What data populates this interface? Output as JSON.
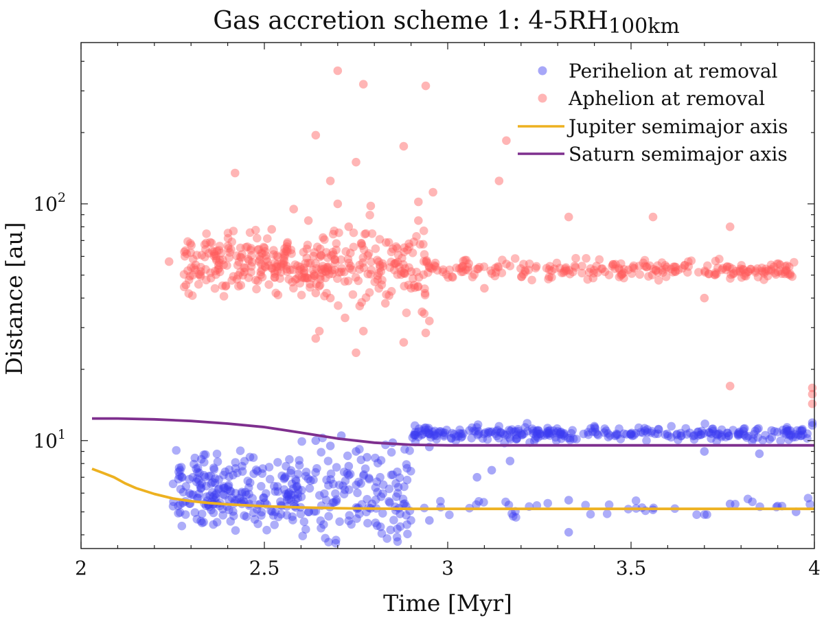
{
  "chart_data": {
    "type": "scatter",
    "title": "Gas accretion scheme 1: 4-5RH_100km",
    "title_main": "Gas accretion scheme 1: 4-5RH",
    "title_sub": "100km",
    "xlabel": "Time [Myr]",
    "ylabel": "Distance [au]",
    "xlim": [
      2,
      4
    ],
    "ylim": [
      3.5,
      480
    ],
    "yscale": "log",
    "x_ticks": [
      {
        "value": 2,
        "label": "2"
      },
      {
        "value": 2.5,
        "label": "2.5"
      },
      {
        "value": 3,
        "label": "3"
      },
      {
        "value": 3.5,
        "label": "3.5"
      },
      {
        "value": 4,
        "label": "4"
      }
    ],
    "y_ticks": [
      {
        "value": 10,
        "base": "10",
        "exp": "1"
      },
      {
        "value": 100,
        "base": "10",
        "exp": "2"
      }
    ],
    "legend_position": "top-right",
    "series": [
      {
        "name": "Perihelion at removal",
        "kind": "scatter",
        "color": "#3b3bf0",
        "clusters": [
          {
            "x": [
              2.25,
              2.6
            ],
            "y_center": 6.1,
            "y_spread": 0.07,
            "count": 230
          },
          {
            "x": [
              2.6,
              2.9
            ],
            "y_center": 6.0,
            "y_spread": 0.12,
            "count": 140
          },
          {
            "x": [
              2.9,
              4.0
            ],
            "y_center": 10.7,
            "y_spread": 0.015,
            "count": 300
          },
          {
            "x": [
              2.9,
              4.0
            ],
            "y_center": 5.3,
            "y_spread": 0.02,
            "count": 40
          }
        ],
        "points": [
          {
            "x": 2.64,
            "y": 10.0
          },
          {
            "x": 2.68,
            "y": 9.5
          },
          {
            "x": 2.71,
            "y": 10.5
          },
          {
            "x": 2.75,
            "y": 9.0
          },
          {
            "x": 2.78,
            "y": 8.5
          },
          {
            "x": 2.73,
            "y": 7.8
          },
          {
            "x": 2.85,
            "y": 9.8
          },
          {
            "x": 2.95,
            "y": 9.4
          },
          {
            "x": 3.08,
            "y": 7.0
          },
          {
            "x": 3.12,
            "y": 7.5
          },
          {
            "x": 3.17,
            "y": 8.2
          },
          {
            "x": 3.33,
            "y": 5.6
          },
          {
            "x": 3.33,
            "y": 4.1
          },
          {
            "x": 3.56,
            "y": 5.1
          },
          {
            "x": 3.7,
            "y": 9.0
          },
          {
            "x": 3.77,
            "y": 5.4
          },
          {
            "x": 3.85,
            "y": 8.8
          },
          {
            "x": 2.95,
            "y": 4.6
          },
          {
            "x": 2.87,
            "y": 4.9
          },
          {
            "x": 2.62,
            "y": 5.0
          },
          {
            "x": 4.0,
            "y": 11.6
          },
          {
            "x": 4.0,
            "y": 11.9
          },
          {
            "x": 3.95,
            "y": 5.0
          }
        ]
      },
      {
        "name": "Aphelion at removal",
        "kind": "scatter",
        "color": "#ff5a5a",
        "clusters": [
          {
            "x": [
              2.28,
              2.7
            ],
            "y_center": 56,
            "y_spread": 0.06,
            "count": 260
          },
          {
            "x": [
              2.7,
              2.95
            ],
            "y_center": 55,
            "y_spread": 0.08,
            "count": 120
          },
          {
            "x": [
              2.95,
              3.95
            ],
            "y_center": 52.5,
            "y_spread": 0.02,
            "count": 230
          }
        ],
        "points": [
          {
            "x": 2.24,
            "y": 57
          },
          {
            "x": 2.42,
            "y": 135
          },
          {
            "x": 2.64,
            "y": 195
          },
          {
            "x": 2.7,
            "y": 365
          },
          {
            "x": 2.77,
            "y": 320
          },
          {
            "x": 2.94,
            "y": 315
          },
          {
            "x": 2.75,
            "y": 150
          },
          {
            "x": 2.88,
            "y": 175
          },
          {
            "x": 3.16,
            "y": 185
          },
          {
            "x": 3.14,
            "y": 125
          },
          {
            "x": 2.68,
            "y": 125
          },
          {
            "x": 2.7,
            "y": 100
          },
          {
            "x": 2.79,
            "y": 98
          },
          {
            "x": 2.96,
            "y": 112
          },
          {
            "x": 2.92,
            "y": 102
          },
          {
            "x": 2.58,
            "y": 95
          },
          {
            "x": 2.52,
            "y": 78
          },
          {
            "x": 2.62,
            "y": 85
          },
          {
            "x": 2.66,
            "y": 72
          },
          {
            "x": 2.73,
            "y": 80
          },
          {
            "x": 2.92,
            "y": 85
          },
          {
            "x": 3.33,
            "y": 88
          },
          {
            "x": 3.56,
            "y": 88
          },
          {
            "x": 3.77,
            "y": 80
          },
          {
            "x": 2.64,
            "y": 42
          },
          {
            "x": 2.68,
            "y": 40
          },
          {
            "x": 2.76,
            "y": 37
          },
          {
            "x": 2.83,
            "y": 38
          },
          {
            "x": 2.84,
            "y": 41
          },
          {
            "x": 2.93,
            "y": 35
          },
          {
            "x": 2.95,
            "y": 32
          },
          {
            "x": 2.72,
            "y": 33
          },
          {
            "x": 2.65,
            "y": 29
          },
          {
            "x": 2.64,
            "y": 27
          },
          {
            "x": 2.77,
            "y": 29
          },
          {
            "x": 2.88,
            "y": 26
          },
          {
            "x": 2.94,
            "y": 28.5
          },
          {
            "x": 2.75,
            "y": 23.5
          },
          {
            "x": 3.7,
            "y": 40
          },
          {
            "x": 3.77,
            "y": 17
          },
          {
            "x": 4.0,
            "y": 16.7
          },
          {
            "x": 4.0,
            "y": 15.7
          },
          {
            "x": 4.0,
            "y": 14.3
          },
          {
            "x": 3.1,
            "y": 44
          },
          {
            "x": 2.9,
            "y": 44
          }
        ]
      },
      {
        "name": "Jupiter semimajor axis",
        "kind": "line",
        "color": "#edb120",
        "x": [
          2.03,
          2.06,
          2.09,
          2.12,
          2.15,
          2.2,
          2.25,
          2.3,
          2.35,
          2.4,
          2.5,
          2.6,
          2.7,
          2.8,
          2.9,
          3.0,
          3.2,
          3.5,
          3.8,
          4.0
        ],
        "y": [
          7.6,
          7.3,
          7.0,
          6.6,
          6.3,
          5.95,
          5.7,
          5.55,
          5.45,
          5.38,
          5.28,
          5.22,
          5.18,
          5.16,
          5.15,
          5.15,
          5.15,
          5.15,
          5.15,
          5.15
        ]
      },
      {
        "name": "Saturn semimajor axis",
        "kind": "line",
        "color": "#7e2f8e",
        "x": [
          2.03,
          2.1,
          2.2,
          2.3,
          2.4,
          2.5,
          2.55,
          2.6,
          2.65,
          2.7,
          2.75,
          2.8,
          2.85,
          2.9,
          3.0,
          3.2,
          3.5,
          3.8,
          4.0
        ],
        "y": [
          12.4,
          12.4,
          12.3,
          12.1,
          11.8,
          11.4,
          11.1,
          10.8,
          10.5,
          10.2,
          10.0,
          9.8,
          9.7,
          9.6,
          9.55,
          9.55,
          9.55,
          9.55,
          9.55
        ]
      }
    ]
  }
}
